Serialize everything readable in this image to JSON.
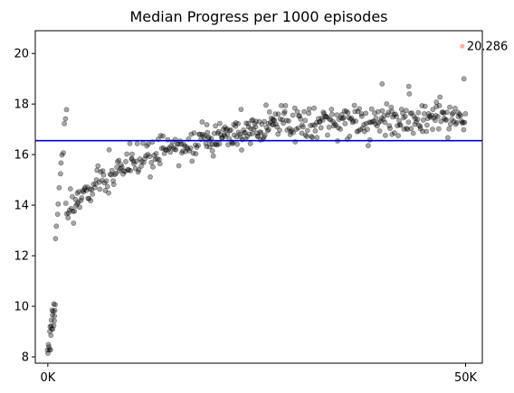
{
  "chart_data": {
    "type": "scatter",
    "title": "Median Progress per 1000 episodes",
    "xlabel": "",
    "ylabel": "",
    "xlim": [
      -1500,
      52000
    ],
    "ylim": [
      7.75,
      20.9
    ],
    "x_ticks": [
      {
        "value": 0,
        "label": "0K"
      },
      {
        "value": 50000,
        "label": "50K"
      }
    ],
    "y_ticks": [
      8,
      10,
      12,
      14,
      16,
      18,
      20
    ],
    "grid": false,
    "reference_line": {
      "orientation": "horizontal",
      "y": 16.55,
      "color": "#0000cc"
    },
    "annotation": {
      "text": "20.286",
      "x": 49600,
      "y": 20.286
    },
    "highlight_point": {
      "x": 49600,
      "y": 20.286,
      "color": "#ff9a8a"
    },
    "point_color": "#000000",
    "point_alpha": 0.35,
    "seed": 7,
    "noise_sd": 0.32,
    "clusters": [
      {
        "x_start": 0,
        "x_end": 900,
        "count": 22,
        "y_start": 8.3,
        "y_end": 10.2
      },
      {
        "x_start": 900,
        "x_end": 2200,
        "count": 12,
        "y_start": 12.8,
        "y_end": 17.8
      },
      {
        "x_start": 2200,
        "x_end": 3500,
        "count": 14,
        "y_start": 13.6,
        "y_end": 13.9
      },
      {
        "x_start": 3500,
        "x_end": 10000,
        "count": 60,
        "y_start": 14.3,
        "y_end": 15.7
      },
      {
        "x_start": 10000,
        "x_end": 19000,
        "count": 80,
        "y_start": 15.7,
        "y_end": 16.7
      },
      {
        "x_start": 19000,
        "x_end": 27000,
        "count": 90,
        "y_start": 16.6,
        "y_end": 17.25
      },
      {
        "x_start": 27000,
        "x_end": 50000,
        "count": 220,
        "y_start": 17.25,
        "y_end": 17.45
      }
    ],
    "explicit_points": [
      {
        "x": 40000,
        "y": 18.8
      },
      {
        "x": 43200,
        "y": 18.7
      },
      {
        "x": 49800,
        "y": 19.0
      },
      {
        "x": 46500,
        "y": 17.9
      },
      {
        "x": 41200,
        "y": 16.8
      }
    ]
  }
}
